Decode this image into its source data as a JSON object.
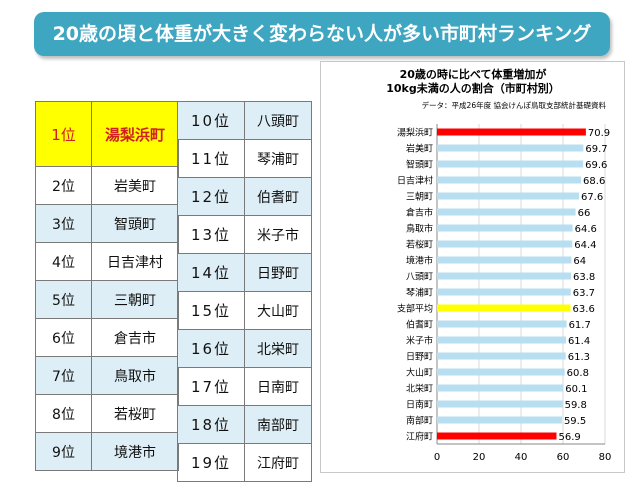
{
  "banner": {
    "title": "20歳の頃と体重が大きく変わらない人が多い市町村ランキング"
  },
  "ranking_left": [
    {
      "rank": "1位",
      "name": "湯梨浜町"
    },
    {
      "rank": "2位",
      "name": "岩美町"
    },
    {
      "rank": "3位",
      "name": "智頭町"
    },
    {
      "rank": "4位",
      "name": "日吉津村"
    },
    {
      "rank": "5位",
      "name": "三朝町"
    },
    {
      "rank": "6位",
      "name": "倉吉市"
    },
    {
      "rank": "7位",
      "name": "鳥取市"
    },
    {
      "rank": "8位",
      "name": "若桜町"
    },
    {
      "rank": "9位",
      "name": "境港市"
    }
  ],
  "ranking_right": [
    {
      "rank": "10位",
      "name": "八頭町"
    },
    {
      "rank": "11位",
      "name": "琴浦町"
    },
    {
      "rank": "12位",
      "name": "伯耆町"
    },
    {
      "rank": "13位",
      "name": "米子市"
    },
    {
      "rank": "14位",
      "name": "日野町"
    },
    {
      "rank": "15位",
      "name": "大山町"
    },
    {
      "rank": "16位",
      "name": "北栄町"
    },
    {
      "rank": "17位",
      "name": "日南町"
    },
    {
      "rank": "18位",
      "name": "南部町"
    },
    {
      "rank": "19位",
      "name": "江府町"
    }
  ],
  "chart_data": {
    "type": "bar",
    "orientation": "horizontal",
    "title": "20歳の時に比べて体重増加が\n10kg未満の人の割合（市町村別）",
    "source": "データ：平成26年度 協会けんぽ鳥取支部統計基礎資料",
    "categories": [
      "湯梨浜町",
      "岩美町",
      "智頭町",
      "日吉津村",
      "三朝町",
      "倉吉市",
      "鳥取市",
      "若桜町",
      "境港市",
      "八頭町",
      "琴浦町",
      "支部平均",
      "伯耆町",
      "米子市",
      "日野町",
      "大山町",
      "北栄町",
      "日南町",
      "南部町",
      "江府町"
    ],
    "values": [
      70.9,
      69.7,
      69.6,
      68.6,
      67.6,
      66,
      64.6,
      64.4,
      64,
      63.8,
      63.7,
      63.6,
      61.7,
      61.4,
      61.3,
      60.8,
      60.1,
      59.8,
      59.5,
      56.9
    ],
    "colors": [
      "#ff0000",
      "#b7dff1",
      "#b7dff1",
      "#b7dff1",
      "#b7dff1",
      "#b7dff1",
      "#b7dff1",
      "#b7dff1",
      "#b7dff1",
      "#b7dff1",
      "#b7dff1",
      "#ffff00",
      "#b7dff1",
      "#b7dff1",
      "#b7dff1",
      "#b7dff1",
      "#b7dff1",
      "#b7dff1",
      "#b7dff1",
      "#ff0000"
    ],
    "xlim": [
      0,
      80
    ],
    "xticks": [
      0,
      20,
      40,
      60,
      80
    ],
    "grid": true,
    "legend": "none"
  }
}
